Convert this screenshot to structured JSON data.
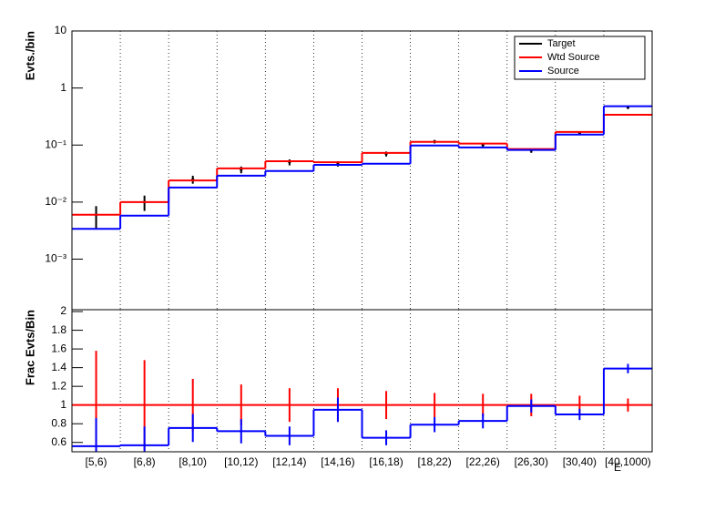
{
  "chart_data": [
    {
      "type": "step",
      "ylabel": "Evts./bin",
      "log_y": true,
      "ylim": [
        0.00013,
        10
      ],
      "yticks": [
        {
          "value": 0.001,
          "label": "10⁻³"
        },
        {
          "value": 0.01,
          "label": "10⁻²"
        },
        {
          "value": 0.1,
          "label": "10⁻¹"
        },
        1,
        10
      ],
      "grid_x": true,
      "legend": "upper right",
      "series": [
        {
          "name": "Target",
          "color": "#000000",
          "style": "points",
          "values": [
            0.006,
            0.01,
            0.025,
            0.037,
            0.05,
            0.047,
            0.07,
            0.115,
            0.1,
            0.08,
            0.16,
            0.45
          ],
          "errors": [
            0.0025,
            0.003,
            0.004,
            0.005,
            0.006,
            0.005,
            0.007,
            0.008,
            0.007,
            0.007,
            0.01,
            0.02
          ]
        },
        {
          "name": "Wtd Source",
          "color": "#ff0000",
          "style": "step",
          "values": [
            0.006,
            0.01,
            0.024,
            0.039,
            0.052,
            0.05,
            0.073,
            0.114,
            0.106,
            0.085,
            0.17,
            0.34
          ]
        },
        {
          "name": "Source",
          "color": "#0000ff",
          "style": "step",
          "values": [
            0.0034,
            0.0058,
            0.018,
            0.029,
            0.035,
            0.045,
            0.047,
            0.098,
            0.091,
            0.082,
            0.153,
            0.48
          ]
        }
      ]
    },
    {
      "type": "step",
      "ylabel": "Frac Evts/Bin",
      "xlabel": "E",
      "ylim": [
        0.5,
        2.02
      ],
      "yticks": [
        0.6,
        0.8,
        1,
        1.2,
        1.4,
        1.6,
        1.8,
        2
      ],
      "grid_x": true,
      "categories": [
        "[5,6)",
        "[6,8)",
        "[8,10)",
        "[10,12)",
        "[12,14)",
        "[14,16)",
        "[16,18)",
        "[18,22)",
        "[22,26)",
        "[26,30)",
        "[30,40)",
        "[40,1000)"
      ],
      "series": [
        {
          "color": "#ff0000",
          "style": "step",
          "values": [
            1,
            1,
            1,
            1,
            1,
            1,
            1,
            1,
            1,
            1,
            1,
            1
          ],
          "errors": [
            0.58,
            0.48,
            0.28,
            0.22,
            0.18,
            0.18,
            0.15,
            0.13,
            0.12,
            0.12,
            0.1,
            0.07
          ]
        },
        {
          "color": "#0000ff",
          "style": "step",
          "values": [
            0.56,
            0.57,
            0.755,
            0.72,
            0.67,
            0.95,
            0.65,
            0.79,
            0.83,
            0.99,
            0.9,
            1.39
          ],
          "errors": [
            0.3,
            0.2,
            0.15,
            0.13,
            0.1,
            0.13,
            0.08,
            0.08,
            0.08,
            0.07,
            0.06,
            0.05
          ]
        }
      ]
    }
  ]
}
